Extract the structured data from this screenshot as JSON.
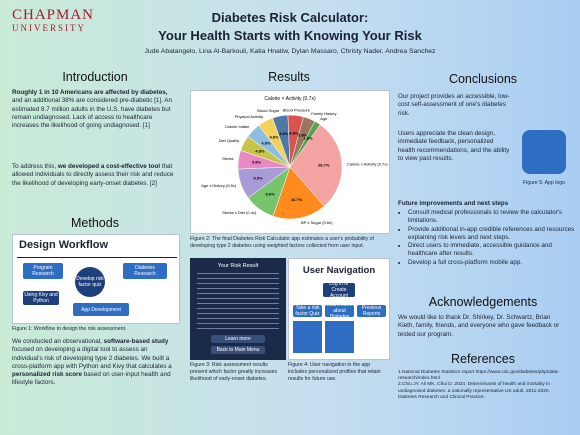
{
  "header": {
    "logo": [
      "CHAPMAN",
      "UNIVERSITY"
    ],
    "title": [
      "Diabetes Risk Calculator:",
      "Your Health Starts with Knowing Your Risk"
    ],
    "authors": "Jude Abatangelo, Lina Al-Barkouli, Katia Hnatiw, Dylan Massaro, Christy Nader, Andrea Sanchez"
  },
  "introduction": {
    "heading": "Introduction",
    "paragraphs": [
      [
        {
          "text": "Roughly 1 in 10 Americans are affected by diabetes,",
          "bold": true
        },
        {
          "text": " and an additional 38% are considered pre-diabetic [1]. An estimated 8.7 million adults in the U.S. have diabetes but remain undiagnosed. Lack of access to healthcare increases the likelihood of going undiagnosed. [1]"
        }
      ],
      [
        {
          "text": "To address this, "
        },
        {
          "text": "we developed a cost-effective tool",
          "bold": true
        },
        {
          "text": " that allowed individuals to directly assess their risk and reduce the likelihood of developing early-onset diabetes. [2]"
        }
      ]
    ]
  },
  "methods": {
    "heading": "Methods",
    "diagram": {
      "title": "Design Workflow",
      "nodes": [
        "Program Research",
        "Develop risk factor quiz",
        "Diabetes Research",
        "Using Kivy and Python",
        "App Development"
      ]
    },
    "caption": "Figure 1: Workflow to design the risk assessment.",
    "paragraph": [
      {
        "text": "We conducted an observational, "
      },
      {
        "text": "software-based study",
        "bold": true
      },
      {
        "text": " focused on developing a digital tool to assess an individual's risk of developing type 2 diabetes. We built a cross-platform app with Python and Kivy that calculates a "
      },
      {
        "text": "personalized risk score",
        "bold": true
      },
      {
        "text": " based on user-input health and lifestyle factors."
      }
    ]
  },
  "results": {
    "heading": "Results",
    "pie": {
      "type": "pie",
      "title": "Calorie × Activity (0.7x)",
      "categories": [
        "Calorie x Activity (0.7x)",
        "BP x Sugar (0.6x)",
        "Stress x Diet (0.4x)",
        "Age x History (0.5x)",
        "Stress",
        "Diet Quality",
        "Calorie Intake",
        "Physical Activity",
        "Blood Sugar",
        "Blood Pressure",
        "Family History",
        "Age"
      ],
      "values": [
        28.7,
        16.7,
        9.6,
        9.5,
        5.8,
        4.8,
        4.8,
        4.8,
        4.8,
        4.8,
        3.8,
        1.9
      ],
      "value_labels": [
        "28.7%",
        "16.7%",
        "9.6%",
        "9.5%",
        "5.8%",
        "4.8%",
        "4.8%",
        "4.8%",
        "4.8%",
        "4.8%",
        "3.8%",
        "1.9%"
      ],
      "colors": [
        "#f4a3a3",
        "#ff8a1e",
        "#78c46c",
        "#a99ad8",
        "#e78ac3",
        "#c7c44a",
        "#8fbde0",
        "#f2d25c",
        "#4e79a7",
        "#d9534f",
        "#9c755f",
        "#59a14f"
      ]
    },
    "caption2": "Figure 2: The final Diabetes Risk Calculator app estimates a user's probability of developing type 2 diabetes using weighted factors collected from user input.",
    "app": {
      "title": "Your Risk Result",
      "buttons": [
        "Learn more",
        "Back to Main Menu"
      ]
    },
    "caption3": "Figure 3: Risk assessment results present which factor greatly increases likelihood of early-onset diabetes.",
    "nav": {
      "title": "User Navigation",
      "nodes": [
        "Log in or Create Account",
        "Take a risk factor Quiz",
        "Learn more about Diabetes",
        "Previous Reports"
      ]
    },
    "caption4": "Figure 4: User navigation in the app includes personalized profiles that retain results for future use."
  },
  "conclusions": {
    "heading": "Conclusions",
    "paragraphs": [
      "Our project provides an accessible, low-cost self-assessment of one's diabetes risk.",
      "Users appreciate the clean design, immediate feedback, personalized health recommendations, and the ability to view past results."
    ],
    "logo_caption": "Figure 5: App logo",
    "future_heading": "Future improvements and next steps",
    "bullets": [
      "Consult medical professionals to review the calculator's limitations.",
      "Provide additional in-app credible references and resources explaining risk levels and next steps.",
      "Direct users to immediate, accessible guidance and healthcare after results.",
      "Develop a full cross-platform mobile app."
    ]
  },
  "acknowledgements": {
    "heading": "Acknowledgements",
    "text": "We would like to thank Dr. Shirkey, Dr. Schwartz, Brian Kieth, family, friends, and everyone who gave feedback or tested our program."
  },
  "references": {
    "heading": "References",
    "items": [
      "1.National Diabetes Statistics report https://www.cdc.gov/diabetes/php/data-research/index.html",
      "2.Chiu JY, Ali MK, Chui D. 2024. Determinants of health and mortality in undiagnosed diabetes: a nationally representative US adult, 2011-2020. Diabetes Research and Clinical Practice."
    ]
  }
}
